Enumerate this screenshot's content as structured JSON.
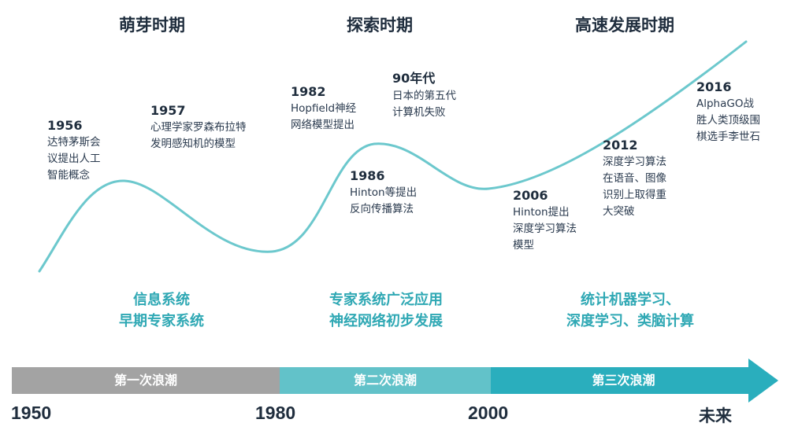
{
  "phases": [
    {
      "title": "萌芽时期"
    },
    {
      "title": "探索时期"
    },
    {
      "title": "高速发展时期"
    }
  ],
  "events": [
    {
      "year": "1956",
      "lines": [
        "达特茅斯会",
        "议提出人工",
        "智能概念"
      ]
    },
    {
      "year": "1957",
      "lines": [
        "心理学家罗森布拉特",
        "发明感知机的模型"
      ]
    },
    {
      "year": "1982",
      "lines": [
        "Hopfield神经",
        "网络模型提出"
      ]
    },
    {
      "year": "90年代",
      "lines": [
        "日本的第五代",
        "计算机失败"
      ]
    },
    {
      "year": "1986",
      "lines": [
        "Hinton等提出",
        "反向传播算法"
      ]
    },
    {
      "year": "2006",
      "lines": [
        "Hinton提出",
        "深度学习算法",
        "模型"
      ]
    },
    {
      "year": "2012",
      "lines": [
        "深度学习算法",
        "在语音、图像",
        "识别上取得重",
        "大突破"
      ]
    },
    {
      "year": "2016",
      "lines": [
        "AlphaGO战",
        "胜人类顶级围",
        "棋选手李世石"
      ]
    }
  ],
  "applications": [
    {
      "lines": [
        "信息系统",
        "早期专家系统"
      ]
    },
    {
      "lines": [
        "专家系统广泛应用",
        "神经网络初步发展"
      ]
    },
    {
      "lines": [
        "统计机器学习、",
        "深度学习、类脑计算"
      ]
    }
  ],
  "waves": [
    {
      "label": "第一次浪潮",
      "color": "#a3a3a3"
    },
    {
      "label": "第二次浪潮",
      "color": "#62c2c9"
    },
    {
      "label": "第三次浪潮",
      "color": "#2aaebd"
    }
  ],
  "axis_years": [
    "1950",
    "1980",
    "2000",
    "未来"
  ],
  "colors": {
    "curve": "#6cc8cd",
    "application_text": "#2fa8b4",
    "heading_text": "#1f2d3d"
  }
}
